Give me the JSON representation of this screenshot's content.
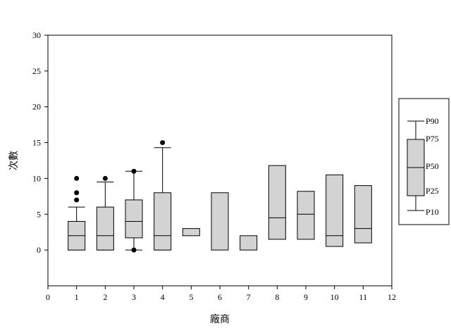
{
  "chart_data": {
    "type": "box",
    "xlabel": "廠商",
    "ylabel": "次數",
    "xlim": [
      0,
      12
    ],
    "ylim": [
      -5,
      30
    ],
    "xticks": [
      0,
      1,
      2,
      3,
      4,
      5,
      6,
      7,
      8,
      9,
      10,
      11,
      12
    ],
    "yticks": [
      0,
      5,
      10,
      15,
      20,
      25,
      30
    ],
    "grid": false,
    "box_fill": "#d3d3d3",
    "legend": {
      "placement": "right",
      "labels": [
        "P90",
        "P75",
        "P50",
        "P25",
        "P10"
      ]
    },
    "boxes": [
      {
        "x": 1,
        "p10": 0,
        "p25": 0,
        "p50": 2,
        "p75": 4,
        "p90": 6,
        "outliers": [
          7,
          8,
          10
        ]
      },
      {
        "x": 2,
        "p10": 0,
        "p25": 0,
        "p50": 2,
        "p75": 6,
        "p90": 9.5,
        "outliers": [
          10
        ]
      },
      {
        "x": 3,
        "p10": 0,
        "p25": 1.7,
        "p50": 4,
        "p75": 7,
        "p90": 11,
        "outliers": [
          0,
          11
        ]
      },
      {
        "x": 4,
        "p10": 0,
        "p25": 0,
        "p50": 2,
        "p75": 8,
        "p90": 14.3,
        "outliers": [
          15
        ]
      },
      {
        "x": 5,
        "p10": null,
        "p25": 2,
        "p50": null,
        "p75": 3,
        "p90": null,
        "outliers": []
      },
      {
        "x": 6,
        "p10": null,
        "p25": 0,
        "p50": null,
        "p75": 8,
        "p90": null,
        "outliers": []
      },
      {
        "x": 7,
        "p10": null,
        "p25": 0,
        "p50": null,
        "p75": 2,
        "p90": null,
        "outliers": []
      },
      {
        "x": 8,
        "p10": null,
        "p25": 1.5,
        "p50": 4.5,
        "p75": 11.8,
        "p90": null,
        "outliers": []
      },
      {
        "x": 9,
        "p10": null,
        "p25": 1.5,
        "p50": 5,
        "p75": 8.2,
        "p90": null,
        "outliers": []
      },
      {
        "x": 10,
        "p10": null,
        "p25": 0.5,
        "p50": 2,
        "p75": 10.5,
        "p90": null,
        "outliers": []
      },
      {
        "x": 11,
        "p10": null,
        "p25": 1,
        "p50": 3,
        "p75": 9,
        "p90": null,
        "outliers": []
      }
    ]
  }
}
